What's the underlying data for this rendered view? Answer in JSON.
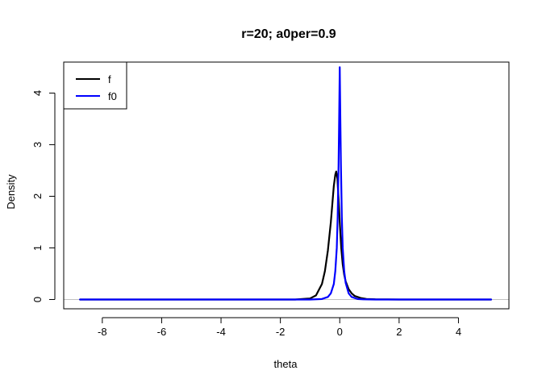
{
  "chart_data": {
    "type": "line",
    "title": "r=20; a0per=0.9",
    "xlabel": "theta",
    "ylabel": "Density",
    "xlim": [
      -9.3,
      5.7
    ],
    "ylim": [
      -0.18,
      4.6
    ],
    "x_ticks": [
      -8,
      -6,
      -4,
      -2,
      0,
      2,
      4
    ],
    "y_ticks": [
      0,
      1,
      2,
      3,
      4
    ],
    "grid": false,
    "baseline": {
      "y": 0,
      "color": "#c0c0c0"
    },
    "legend": {
      "position": "top-left"
    },
    "series": [
      {
        "name": "f",
        "color": "#000000",
        "x": [
          -8.75,
          -4.0,
          -1.5,
          -1.0,
          -0.8,
          -0.6,
          -0.5,
          -0.4,
          -0.3,
          -0.25,
          -0.2,
          -0.15,
          -0.12,
          -0.08,
          -0.04,
          0.0,
          0.05,
          0.1,
          0.15,
          0.2,
          0.3,
          0.4,
          0.5,
          0.7,
          0.9,
          1.2,
          2.0,
          5.1
        ],
        "y": [
          0,
          0,
          0,
          0.02,
          0.08,
          0.3,
          0.55,
          0.95,
          1.5,
          1.85,
          2.2,
          2.42,
          2.48,
          2.35,
          1.95,
          1.5,
          1.0,
          0.68,
          0.48,
          0.35,
          0.2,
          0.12,
          0.07,
          0.03,
          0.01,
          0.003,
          0,
          0
        ]
      },
      {
        "name": "f0",
        "color": "#0000ff",
        "x": [
          -8.75,
          -2.0,
          -1.0,
          -0.6,
          -0.4,
          -0.3,
          -0.2,
          -0.15,
          -0.1,
          -0.07,
          -0.04,
          -0.02,
          0.0,
          0.02,
          0.04,
          0.07,
          0.1,
          0.15,
          0.2,
          0.3,
          0.4,
          0.6,
          0.8,
          1.2,
          2.0,
          5.1
        ],
        "y": [
          0,
          0,
          0,
          0.01,
          0.05,
          0.12,
          0.3,
          0.55,
          1.0,
          1.6,
          2.6,
          3.5,
          4.5,
          3.5,
          2.6,
          1.6,
          1.0,
          0.55,
          0.32,
          0.12,
          0.05,
          0.01,
          0.003,
          0,
          0,
          0
        ]
      }
    ]
  }
}
